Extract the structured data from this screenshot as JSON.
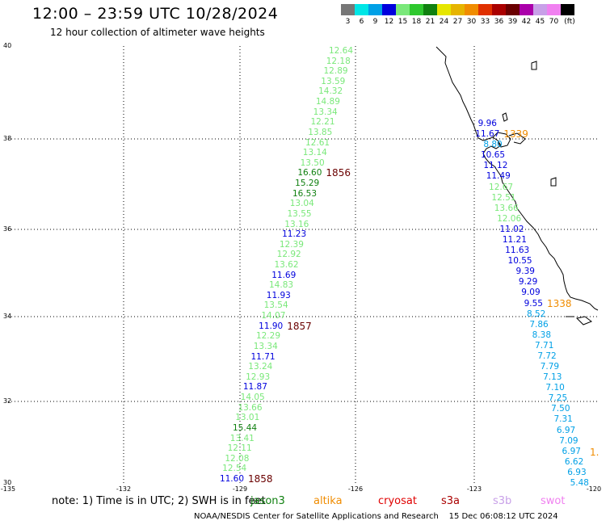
{
  "header": {
    "title": "12:00 – 23:59 UTC 10/28/2024",
    "subtitle": "12 hour collection of altimeter wave heights"
  },
  "legend": {
    "unit": "(ft)",
    "bins": [
      {
        "label": "3",
        "color": "#777777"
      },
      {
        "label": "6",
        "color": "#00e6e6"
      },
      {
        "label": "9",
        "color": "#00a0e6"
      },
      {
        "label": "12",
        "color": "#0000dd"
      },
      {
        "label": "15",
        "color": "#7ae87a"
      },
      {
        "label": "18",
        "color": "#2ec82e"
      },
      {
        "label": "21",
        "color": "#108010"
      },
      {
        "label": "24",
        "color": "#e6e600"
      },
      {
        "label": "27",
        "color": "#e6b400"
      },
      {
        "label": "30",
        "color": "#f08c00"
      },
      {
        "label": "33",
        "color": "#e03000"
      },
      {
        "label": "36",
        "color": "#aa0000"
      },
      {
        "label": "39",
        "color": "#6a0000"
      },
      {
        "label": "42",
        "color": "#aa00aa"
      },
      {
        "label": "45",
        "color": "#c8a0e8"
      },
      {
        "label": "70",
        "color": "#f080f0"
      },
      {
        "label": "",
        "color": "#000000"
      }
    ]
  },
  "axes": {
    "lat_ticks": [
      "40",
      "38",
      "36",
      "34",
      "32",
      "30"
    ],
    "lon_ticks": [
      "-135",
      "-132",
      "-129",
      "-126",
      "-123",
      "-120"
    ]
  },
  "chart_data": {
    "type": "scatter",
    "passes": [
      {
        "name": "west",
        "points": [
          {
            "v": "12.64",
            "c": "#7ae87a"
          },
          {
            "v": "12.18",
            "c": "#7ae87a"
          },
          {
            "v": "12.89",
            "c": "#7ae87a"
          },
          {
            "v": "13.59",
            "c": "#7ae87a"
          },
          {
            "v": "14.32",
            "c": "#7ae87a"
          },
          {
            "v": "14.89",
            "c": "#7ae87a"
          },
          {
            "v": "13.34",
            "c": "#7ae87a"
          },
          {
            "v": "12.21",
            "c": "#7ae87a"
          },
          {
            "v": "13.85",
            "c": "#7ae87a"
          },
          {
            "v": "12.61",
            "c": "#7ae87a"
          },
          {
            "v": "13.14",
            "c": "#7ae87a"
          },
          {
            "v": "13.50",
            "c": "#7ae87a"
          },
          {
            "v": "16.60",
            "c": "#108010"
          },
          {
            "v": "15.29",
            "c": "#108010"
          },
          {
            "v": "16.53",
            "c": "#108010"
          },
          {
            "v": "13.04",
            "c": "#7ae87a"
          },
          {
            "v": "13.55",
            "c": "#7ae87a"
          },
          {
            "v": "13.16",
            "c": "#7ae87a"
          },
          {
            "v": "11.23",
            "c": "#0000dd"
          },
          {
            "v": "12.39",
            "c": "#7ae87a"
          },
          {
            "v": "12.92",
            "c": "#7ae87a"
          },
          {
            "v": "13.62",
            "c": "#7ae87a"
          },
          {
            "v": "11.69",
            "c": "#0000dd"
          },
          {
            "v": "14.83",
            "c": "#7ae87a"
          },
          {
            "v": "11.93",
            "c": "#0000dd"
          },
          {
            "v": "13.54",
            "c": "#7ae87a"
          },
          {
            "v": "14.07",
            "c": "#7ae87a"
          },
          {
            "v": "11.90",
            "c": "#0000dd"
          },
          {
            "v": "12.29",
            "c": "#7ae87a"
          },
          {
            "v": "13.34",
            "c": "#7ae87a"
          },
          {
            "v": "11.71",
            "c": "#0000dd"
          },
          {
            "v": "13.24",
            "c": "#7ae87a"
          },
          {
            "v": "12.93",
            "c": "#7ae87a"
          },
          {
            "v": "11.87",
            "c": "#0000dd"
          },
          {
            "v": "14.05",
            "c": "#7ae87a"
          },
          {
            "v": "13.66",
            "c": "#7ae87a"
          },
          {
            "v": "13.01",
            "c": "#7ae87a"
          },
          {
            "v": "15.44",
            "c": "#108010"
          },
          {
            "v": "13.41",
            "c": "#7ae87a"
          },
          {
            "v": "12.11",
            "c": "#7ae87a"
          },
          {
            "v": "12.08",
            "c": "#7ae87a"
          },
          {
            "v": "12.54",
            "c": "#7ae87a"
          },
          {
            "v": "11.60",
            "c": "#0000dd"
          }
        ],
        "time_labels": [
          {
            "v": "1856",
            "c": "#6a0000",
            "after": 12
          },
          {
            "v": "1857",
            "c": "#6a0000",
            "after": 27
          },
          {
            "v": "1858",
            "c": "#6a0000",
            "after": 42
          }
        ]
      },
      {
        "name": "east",
        "points": [
          {
            "v": "9.96",
            "c": "#0000dd"
          },
          {
            "v": "11.67",
            "c": "#0000dd"
          },
          {
            "v": "8.80",
            "c": "#00a0e6"
          },
          {
            "v": "10.65",
            "c": "#0000dd"
          },
          {
            "v": "11.12",
            "c": "#0000dd"
          },
          {
            "v": "11.49",
            "c": "#0000dd"
          },
          {
            "v": "12.67",
            "c": "#7ae87a"
          },
          {
            "v": "12.51",
            "c": "#7ae87a"
          },
          {
            "v": "13.66",
            "c": "#7ae87a"
          },
          {
            "v": "12.06",
            "c": "#7ae87a"
          },
          {
            "v": "11.02",
            "c": "#0000dd"
          },
          {
            "v": "11.21",
            "c": "#0000dd"
          },
          {
            "v": "11.63",
            "c": "#0000dd"
          },
          {
            "v": "10.55",
            "c": "#0000dd"
          },
          {
            "v": "9.39",
            "c": "#0000dd"
          },
          {
            "v": "9.29",
            "c": "#0000dd"
          },
          {
            "v": "9.09",
            "c": "#0000dd"
          },
          {
            "v": "9.55",
            "c": "#0000dd"
          },
          {
            "v": "8.52",
            "c": "#00a0e6"
          },
          {
            "v": "7.86",
            "c": "#00a0e6"
          },
          {
            "v": "8.38",
            "c": "#00a0e6"
          },
          {
            "v": "7.71",
            "c": "#00a0e6"
          },
          {
            "v": "7.72",
            "c": "#00a0e6"
          },
          {
            "v": "7.79",
            "c": "#00a0e6"
          },
          {
            "v": "7.13",
            "c": "#00a0e6"
          },
          {
            "v": "7.10",
            "c": "#00a0e6"
          },
          {
            "v": "7.25",
            "c": "#00a0e6"
          },
          {
            "v": "7.50",
            "c": "#00a0e6"
          },
          {
            "v": "7.31",
            "c": "#00a0e6"
          },
          {
            "v": "6.97",
            "c": "#00a0e6"
          },
          {
            "v": "7.09",
            "c": "#00a0e6"
          },
          {
            "v": "6.97",
            "c": "#00a0e6"
          },
          {
            "v": "6.62",
            "c": "#00a0e6"
          },
          {
            "v": "6.93",
            "c": "#00a0e6"
          },
          {
            "v": "5.48",
            "c": "#00a0e6"
          }
        ],
        "time_labels": [
          {
            "v": "1339",
            "c": "#f08c00",
            "after": 1
          },
          {
            "v": "1338",
            "c": "#f08c00",
            "after": 17
          }
        ]
      }
    ],
    "edge_label": {
      "v": "1.",
      "c": "#f08c00"
    }
  },
  "note": {
    "text": "note:  1) Time is in UTC;  2) SWH is in feet",
    "satellites": [
      {
        "name": "jason3",
        "color": "#108010"
      },
      {
        "name": "altika",
        "color": "#f08c00"
      },
      {
        "name": "cryosat",
        "color": "#e00000"
      },
      {
        "name": "s3a",
        "color": "#aa0000"
      },
      {
        "name": "s3b",
        "color": "#c8a0e8"
      },
      {
        "name": "swot",
        "color": "#f080f0"
      }
    ]
  },
  "footer": {
    "credit": "NOAA/NESDIS Center for Satellite Applications and Research",
    "generated": "15 Dec 06:08:12 UTC 2024"
  }
}
